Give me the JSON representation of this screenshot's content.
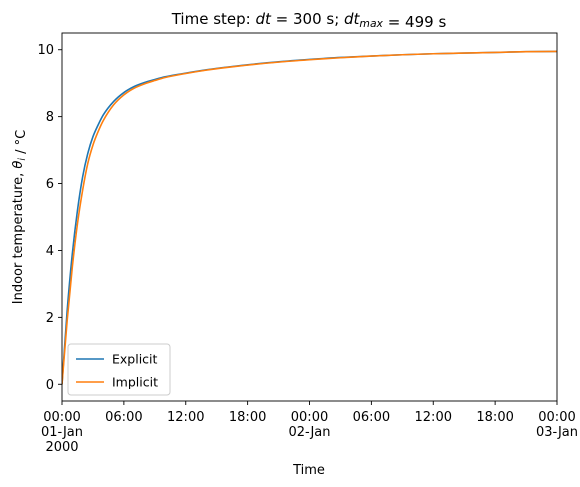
{
  "chart_data": {
    "type": "line",
    "title": "Time step: dt = 300 s; dt_max = 499 s",
    "xlabel": "Time",
    "ylabel": "Indoor temperature, θ_i / °C",
    "xlim": [
      "2000-01-01 00:00",
      "2000-01-03 00:00"
    ],
    "ylim": [
      -0.5,
      10.5
    ],
    "yticks": [
      0,
      2,
      4,
      6,
      8,
      10
    ],
    "xticks": [
      {
        "at": "2000-01-01 00:00",
        "label": "00:00\n01-Jan\n2000"
      },
      {
        "at": "2000-01-01 06:00",
        "label": "06:00"
      },
      {
        "at": "2000-01-01 12:00",
        "label": "12:00"
      },
      {
        "at": "2000-01-01 18:00",
        "label": "18:00"
      },
      {
        "at": "2000-01-02 00:00",
        "label": "00:00\n02-Jan"
      },
      {
        "at": "2000-01-02 06:00",
        "label": "06:00"
      },
      {
        "at": "2000-01-02 12:00",
        "label": "12:00"
      },
      {
        "at": "2000-01-02 18:00",
        "label": "18:00"
      },
      {
        "at": "2000-01-03 00:00",
        "label": "00:00\n03-Jan"
      }
    ],
    "grid": false,
    "legend_position": "lower-left",
    "series": [
      {
        "name": "Explicit",
        "color": "#1f77b4",
        "x": [
          "2000-01-01 00:00",
          "2000-01-01 00:30",
          "2000-01-01 01:00",
          "2000-01-01 01:30",
          "2000-01-01 02:00",
          "2000-01-01 02:30",
          "2000-01-01 03:00",
          "2000-01-01 03:30",
          "2000-01-01 04:00",
          "2000-01-01 05:00",
          "2000-01-01 06:00",
          "2000-01-01 07:00",
          "2000-01-01 08:00",
          "2000-01-01 09:00",
          "2000-01-01 10:00",
          "2000-01-01 12:00",
          "2000-01-01 14:00",
          "2000-01-01 16:00",
          "2000-01-01 18:00",
          "2000-01-01 21:00",
          "2000-01-02 00:00",
          "2000-01-02 03:00",
          "2000-01-02 06:00",
          "2000-01-02 09:00",
          "2000-01-02 12:00",
          "2000-01-02 15:00",
          "2000-01-02 18:00",
          "2000-01-02 21:00",
          "2000-01-03 00:00"
        ],
        "values": [
          0.0,
          2.2,
          3.9,
          5.2,
          6.2,
          6.9,
          7.4,
          7.75,
          8.05,
          8.45,
          8.72,
          8.9,
          9.02,
          9.11,
          9.19,
          9.3,
          9.4,
          9.48,
          9.55,
          9.64,
          9.71,
          9.77,
          9.81,
          9.85,
          9.88,
          9.9,
          9.92,
          9.94,
          9.95
        ]
      },
      {
        "name": "Implicit",
        "color": "#ff7f0e",
        "x": [
          "2000-01-01 00:00",
          "2000-01-01 00:30",
          "2000-01-01 01:00",
          "2000-01-01 01:30",
          "2000-01-01 02:00",
          "2000-01-01 02:30",
          "2000-01-01 03:00",
          "2000-01-01 03:30",
          "2000-01-01 04:00",
          "2000-01-01 05:00",
          "2000-01-01 06:00",
          "2000-01-01 07:00",
          "2000-01-01 08:00",
          "2000-01-01 09:00",
          "2000-01-01 10:00",
          "2000-01-01 12:00",
          "2000-01-01 14:00",
          "2000-01-01 16:00",
          "2000-01-01 18:00",
          "2000-01-01 21:00",
          "2000-01-02 00:00",
          "2000-01-02 03:00",
          "2000-01-02 06:00",
          "2000-01-02 09:00",
          "2000-01-02 12:00",
          "2000-01-02 15:00",
          "2000-01-02 18:00",
          "2000-01-02 21:00",
          "2000-01-03 00:00"
        ],
        "values": [
          0.0,
          1.9,
          3.5,
          4.8,
          5.8,
          6.6,
          7.15,
          7.55,
          7.88,
          8.35,
          8.65,
          8.85,
          8.98,
          9.08,
          9.17,
          9.29,
          9.39,
          9.47,
          9.54,
          9.63,
          9.7,
          9.76,
          9.81,
          9.85,
          9.88,
          9.9,
          9.92,
          9.94,
          9.95
        ]
      }
    ]
  }
}
